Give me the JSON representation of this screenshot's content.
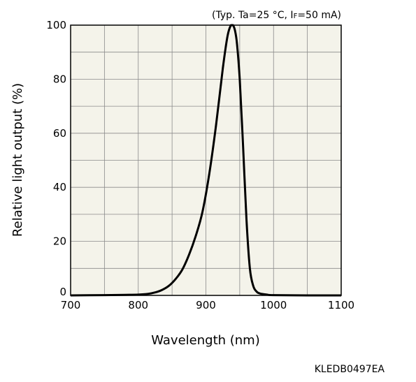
{
  "chart_data": {
    "type": "line",
    "condition_prefix": "(Typ. Ta=25 °C, I",
    "condition_sub": "F",
    "condition_suffix": "=50 mA)",
    "xlabel": "Wavelength (nm)",
    "ylabel": "Relative light output (%)",
    "figure_code": "KLEDB0497EA",
    "xlim": [
      700,
      1100
    ],
    "ylim": [
      0,
      100
    ],
    "x_ticks": [
      "700",
      "800",
      "900",
      "1000",
      "1100"
    ],
    "y_ticks": [
      "0",
      "20",
      "40",
      "60",
      "80",
      "100"
    ],
    "grid": true,
    "colors": {
      "plot_bg": "#f4f3ea",
      "grid": "#8a8a8a",
      "line": "#000000"
    },
    "series": [
      {
        "x": [
          700,
          750,
          780,
          800,
          815,
          825,
          835,
          845,
          855,
          865,
          875,
          885,
          895,
          905,
          915,
          925,
          932,
          937,
          940,
          943,
          946,
          950,
          955,
          960,
          965,
          970,
          975,
          980,
          990,
          1000,
          1050,
          1100
        ],
        "y": [
          0,
          0.1,
          0.2,
          0.3,
          0.6,
          1.1,
          2.0,
          3.5,
          6.0,
          9.5,
          15.0,
          22.0,
          31.0,
          45.0,
          63.0,
          84.0,
          96.0,
          100.0,
          100.0,
          98.0,
          93.0,
          80.0,
          55.0,
          28.0,
          10.0,
          3.5,
          1.4,
          0.7,
          0.3,
          0.1,
          0,
          0
        ]
      }
    ]
  }
}
